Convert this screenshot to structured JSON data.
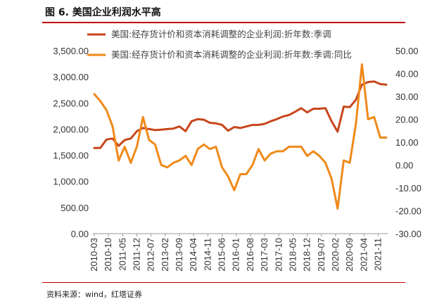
{
  "header": {
    "title": "图 6. 美国企业利润水平高"
  },
  "footer": {
    "source": "资料来源：wind，红塔证券"
  },
  "chart_data": {
    "type": "line",
    "x": [
      "2010-03",
      "2010-06",
      "2010-09",
      "2010-12",
      "2011-03",
      "2011-06",
      "2011-09",
      "2011-12",
      "2012-03",
      "2012-06",
      "2012-09",
      "2012-12",
      "2013-03",
      "2013-06",
      "2013-09",
      "2013-12",
      "2014-03",
      "2014-06",
      "2014-09",
      "2014-12",
      "2015-03",
      "2015-06",
      "2015-09",
      "2015-12",
      "2016-03",
      "2016-06",
      "2016-09",
      "2016-12",
      "2017-03",
      "2017-06",
      "2017-09",
      "2017-12",
      "2018-03",
      "2018-06",
      "2018-09",
      "2018-12",
      "2019-03",
      "2019-06",
      "2019-09",
      "2019-12",
      "2020-03",
      "2020-06",
      "2020-09",
      "2020-12",
      "2021-03",
      "2021-06",
      "2021-09",
      "2021-12",
      "2022-03"
    ],
    "x_tick_labels": [
      "2010-03",
      "2010-10",
      "2011-05",
      "2011-12",
      "2012-07",
      "2013-02",
      "2013-09",
      "2014-04",
      "2014-11",
      "2015-06",
      "2016-01",
      "2016-08",
      "2017-03",
      "2017-10",
      "2018-05",
      "2018-12",
      "2019-07",
      "2020-02",
      "2020-09",
      "2021-04",
      "2021-11"
    ],
    "series": [
      {
        "name": "美国:经存货计价和资本消耗调整的企业利润:折年数:季调",
        "axis": "left",
        "color": "#c8461c",
        "values": [
          1640,
          1640,
          1800,
          1820,
          1680,
          1790,
          1820,
          1960,
          2020,
          2000,
          1980,
          1990,
          2000,
          2010,
          2050,
          1960,
          2150,
          2190,
          2180,
          2120,
          2110,
          2080,
          1970,
          2040,
          2020,
          2050,
          2080,
          2080,
          2100,
          2150,
          2190,
          2240,
          2270,
          2330,
          2400,
          2320,
          2390,
          2390,
          2400,
          2150,
          1950,
          2430,
          2420,
          2560,
          2850,
          2900,
          2910,
          2860,
          2850
        ]
      },
      {
        "name": "美国:经存货计价和资本消耗调整的企业利润:折年数:季调:同比",
        "axis": "right",
        "color": "#ef8a1a",
        "values": [
          31,
          28,
          24,
          17,
          2,
          8,
          1,
          8,
          21,
          11,
          9,
          0,
          -1,
          1,
          2,
          4,
          0,
          7,
          9,
          7,
          8,
          -1,
          -5,
          -11,
          -4,
          -4,
          0,
          7,
          2,
          5,
          6,
          6,
          8,
          8,
          8,
          4,
          6,
          4,
          1,
          -6,
          -19,
          2,
          1,
          18,
          44,
          20,
          21,
          12,
          12
        ]
      }
    ],
    "y_left": {
      "min": 0,
      "max": 3500,
      "step": 500,
      "tick_labels": [
        "0.00",
        "500.00",
        "1,000.00",
        "1,500.00",
        "2,000.00",
        "2,500.00",
        "3,000.00",
        "3,500.00"
      ]
    },
    "y_right": {
      "min": -30,
      "max": 50,
      "step": 10,
      "tick_labels": [
        "-30.00",
        "-20.00",
        "-10.00",
        "0.00",
        "10.00",
        "20.00",
        "30.00",
        "40.00",
        "50.00"
      ]
    },
    "grid": false,
    "legend_placement": "top"
  }
}
